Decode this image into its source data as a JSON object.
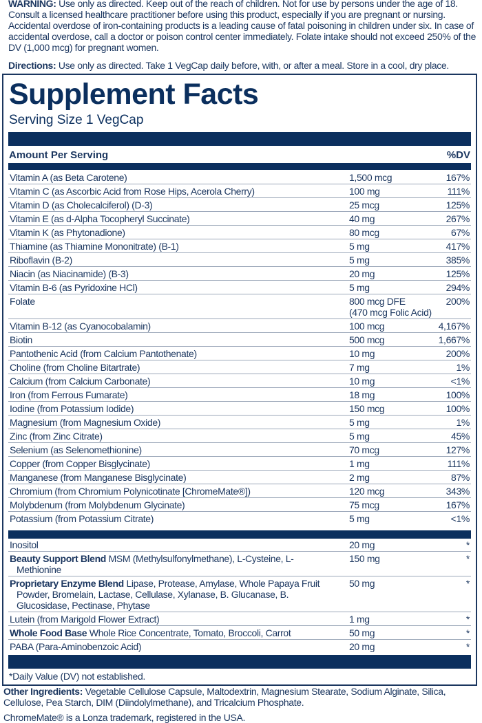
{
  "warning": {
    "label": "WARNING:",
    "text": "Use only as directed.  Keep out of the reach of children. Not for use by persons under the age of 18.  Consult a licensed healthcare practitioner before using this product, especially if you are pregnant or nursing.  Accidental overdose of iron-containing products is a leading cause of fatal poisoning in children under six.  In case of accidental overdose, call a doctor or poison control center immediately. Folate intake should not exceed 250% of the DV (1,000 mcg) for pregnant women."
  },
  "directions": {
    "label": "Directions:",
    "text": "Use only as directed. Take 1 VegCap daily before, with, or after a meal. Store in a cool, dry place."
  },
  "facts": {
    "title": "Supplement Facts",
    "serving_size": "Serving Size 1 VegCap",
    "header_amount": "Amount Per Serving",
    "header_dv": "%DV",
    "nutrients": [
      {
        "name": "Vitamin A (as Beta Carotene)",
        "amount": "1,500 mcg",
        "dv": "167%"
      },
      {
        "name": "Vitamin C (as Ascorbic Acid from Rose Hips, Acerola Cherry)",
        "amount": "100 mg",
        "dv": "111%"
      },
      {
        "name": "Vitamin D (as Cholecalciferol) (D-3)",
        "amount": "25 mcg",
        "dv": "125%"
      },
      {
        "name": "Vitamin E (as d-Alpha Tocopheryl Succinate)",
        "amount": "40 mg",
        "dv": "267%"
      },
      {
        "name": "Vitamin K (as Phytonadione)",
        "amount": "80 mcg",
        "dv": "67%"
      },
      {
        "name": "Thiamine (as Thiamine Mononitrate) (B-1)",
        "amount": "5 mg",
        "dv": "417%"
      },
      {
        "name": "Riboflavin (B-2)",
        "amount": "5 mg",
        "dv": "385%"
      },
      {
        "name": "Niacin (as Niacinamide) (B-3)",
        "amount": "20 mg",
        "dv": "125%"
      },
      {
        "name": "Vitamin B-6 (as Pyridoxine HCl)",
        "amount": "5 mg",
        "dv": "294%"
      },
      {
        "name": "Folate",
        "amount": "800 mcg DFE",
        "amount2": "(470 mcg Folic Acid)",
        "dv": "200%"
      },
      {
        "name": "Vitamin B-12 (as Cyanocobalamin)",
        "amount": "100 mcg",
        "dv": "4,167%"
      },
      {
        "name": "Biotin",
        "amount": "500 mcg",
        "dv": "1,667%"
      },
      {
        "name": "Pantothenic Acid (from Calcium Pantothenate)",
        "amount": "10 mg",
        "dv": "200%"
      },
      {
        "name": "Choline (from Choline Bitartrate)",
        "amount": "7 mg",
        "dv": "1%"
      },
      {
        "name": "Calcium (from Calcium Carbonate)",
        "amount": "10 mg",
        "dv": "<1%"
      },
      {
        "name": "Iron (from Ferrous Fumarate)",
        "amount": "18 mg",
        "dv": "100%"
      },
      {
        "name": "Iodine (from Potassium Iodide)",
        "amount": "150 mcg",
        "dv": "100%"
      },
      {
        "name": "Magnesium (from Magnesium Oxide)",
        "amount": "5 mg",
        "dv": "1%"
      },
      {
        "name": "Zinc (from Zinc Citrate)",
        "amount": "5 mg",
        "dv": "45%"
      },
      {
        "name": "Selenium (as Selenomethionine)",
        "amount": "70 mcg",
        "dv": "127%"
      },
      {
        "name": "Copper (from Copper Bisglycinate)",
        "amount": "1 mg",
        "dv": "111%"
      },
      {
        "name": "Manganese (from Manganese Bisglycinate)",
        "amount": "2 mg",
        "dv": "87%"
      },
      {
        "name": "Chromium (from Chromium Polynicotinate [ChromeMate®])",
        "amount": "120 mcg",
        "dv": "343%"
      },
      {
        "name": "Molybdenum (from Molybdenum Glycinate)",
        "amount": "75 mcg",
        "dv": "167%"
      },
      {
        "name": "Potassium (from Potassium Citrate)",
        "amount": "5 mg",
        "dv": "<1%"
      }
    ],
    "other_items": [
      {
        "name": "Inositol",
        "amount": "20 mg",
        "dv": "*"
      },
      {
        "bold": "Beauty Support Blend",
        "name": "MSM (Methylsulfonylmethane), L-Cysteine, L-Methionine",
        "amount": "150 mg",
        "dv": "*"
      },
      {
        "bold": "Proprietary Enzyme Blend",
        "name": "Lipase, Protease, Amylase, Whole Papaya Fruit Powder, Bromelain, Lactase, Cellulase, Xylanase, B. Glucanase, B. Glucosidase, Pectinase, Phytase",
        "amount": "50 mg",
        "dv": "*"
      },
      {
        "name": "Lutein (from Marigold Flower Extract)",
        "amount": "1 mg",
        "dv": "*"
      },
      {
        "bold": "Whole Food Base",
        "name": "Whole Rice Concentrate, Tomato, Broccoli, Carrot",
        "amount": "50 mg",
        "dv": "*"
      },
      {
        "name": "PABA (Para-Aminobenzoic Acid)",
        "amount": "20 mg",
        "dv": "*"
      }
    ],
    "footnote": "*Daily Value (DV) not established."
  },
  "other_ingredients": {
    "label": "Other Ingredients:",
    "text": "Vegetable Cellulose Capsule, Maltodextrin, Magnesium Stearate, Sodium Alginate, Silica, Cellulose, Pea Starch, DIM (Diindolylmethane), and Tricalcium Phosphate."
  },
  "trademark": "ChromeMate® is a Lonza trademark, registered in the USA.",
  "colors": {
    "navy": "#0b2f5e",
    "text": "#1b365f"
  }
}
